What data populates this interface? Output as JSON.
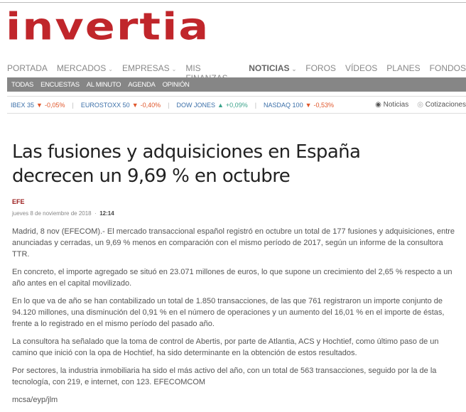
{
  "logo": "invertia",
  "nav": {
    "items": [
      {
        "label": "PORTADA"
      },
      {
        "label": "MERCADOS",
        "dropdown": true
      },
      {
        "label": "EMPRESAS",
        "dropdown": true
      },
      {
        "label": "MIS FINANZAS",
        "dropdown": true
      },
      {
        "label": "NOTICIAS",
        "dropdown": true,
        "active": true
      },
      {
        "label": "FOROS"
      },
      {
        "label": "VÍDEOS"
      },
      {
        "label": "PLANES"
      },
      {
        "label": "FONDOS"
      }
    ]
  },
  "subnav": [
    "TODAS",
    "ENCUESTAS",
    "AL MINUTO",
    "AGENDA",
    "OPINIÓN"
  ],
  "ticker": [
    {
      "name": "IBEX 35",
      "dir": "down",
      "change": "-0,05%"
    },
    {
      "name": "EUROSTOXX 50",
      "dir": "down",
      "change": "-0,40%"
    },
    {
      "name": "DOW JONES",
      "dir": "up",
      "change": "+0,09%"
    },
    {
      "name": "NASDAQ 100",
      "dir": "down",
      "change": "-0,53%"
    }
  ],
  "radios": [
    {
      "label": "Noticias",
      "checked": true
    },
    {
      "label": "Cotizaciones",
      "checked": false
    }
  ],
  "article": {
    "title": "Las fusiones y adquisiciones en España decrecen un 9,69 % en octubre",
    "source": "EFE",
    "date": "jueves 8 de noviembre de 2018",
    "time": "12:14",
    "paragraphs": [
      "Madrid, 8 nov (EFECOM).- El mercado transaccional español registró en octubre un total de 177 fusiones y adquisiciones, entre anunciadas y cerradas, un 9,69 % menos en comparación con el mismo período de 2017, según un informe de la consultora TTR.",
      "En concreto, el importe agregado se situó en 23.071 millones de euros, lo que supone un crecimiento del 2,65 % respecto a un año antes en el capital movilizado.",
      "En lo que va de año se han contabilizado un total de 1.850 transacciones, de las que 761 registraron un importe conjunto de 94.120 millones, una disminución del 0,91 % en el número de operaciones y un aumento del 16,01 % en el importe de éstas, frente a lo registrado en el mismo período del pasado año.",
      "La consultora ha señalado que la toma de control de Abertis, por parte de Atlantia, ACS y Hochtief, como último paso de un camino que inició con la opa de Hochtief, ha sido determinante en la obtención de estos resultados.",
      "Por sectores, la industria inmobiliaria ha sido el más activo del año, con un total de 563 transacciones, seguido por la de la tecnología, con 219, e internet, con 123. EFECOMCOM",
      "mcsa/eyp/jlm"
    ]
  },
  "colors": {
    "brand": "#c0262b",
    "down": "#e0562a",
    "up": "#3aa38a",
    "link": "#3b6fa8"
  }
}
